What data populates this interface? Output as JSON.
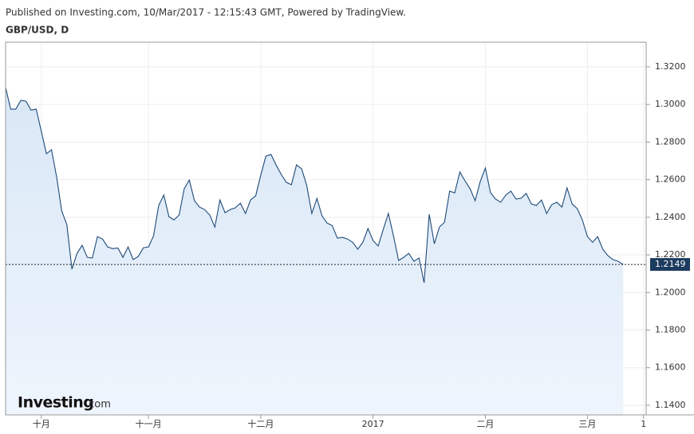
{
  "chart_data": {
    "type": "area-line",
    "subtitle": "Published on Investing.com, 10/Mar/2017 - 12:15:43 GMT, Powered by TradingView.",
    "title": "GBP/USD, D",
    "watermark": [
      "Investing",
      ".com"
    ],
    "series": [
      {
        "name": "GBP/USD",
        "color": "#1f4a78",
        "fill": "#dde9f6",
        "values": [
          1.309,
          1.2975,
          1.2975,
          1.3022,
          1.3017,
          1.297,
          1.2975,
          1.2857,
          1.2738,
          1.2759,
          1.2615,
          1.2433,
          1.2361,
          1.2124,
          1.2208,
          1.2251,
          1.2187,
          1.2183,
          1.2297,
          1.2284,
          1.2242,
          1.2233,
          1.2237,
          1.2187,
          1.2242,
          1.2175,
          1.2192,
          1.2238,
          1.2242,
          1.2302,
          1.2463,
          1.2518,
          1.2403,
          1.2386,
          1.2412,
          1.2552,
          1.2598,
          1.2488,
          1.2454,
          1.2441,
          1.2412,
          1.2348,
          1.2492,
          1.2424,
          1.2441,
          1.245,
          1.2475,
          1.242,
          1.2492,
          1.2514,
          1.2624,
          1.2725,
          1.2734,
          1.2678,
          1.2628,
          1.2586,
          1.2573,
          1.2679,
          1.2658,
          1.2569,
          1.242,
          1.25,
          1.2407,
          1.2369,
          1.2356,
          1.2289,
          1.2293,
          1.2284,
          1.2267,
          1.223,
          1.2267,
          1.234,
          1.2276,
          1.2247,
          1.2336,
          1.242,
          1.2301,
          1.217,
          1.2187,
          1.2208,
          1.2166,
          1.2183,
          1.2052,
          1.2416,
          1.2259,
          1.2348,
          1.2374,
          1.2539,
          1.253,
          1.2641,
          1.2594,
          1.2552,
          1.2488,
          1.259,
          1.2662,
          1.2531,
          1.2497,
          1.248,
          1.2518,
          1.2539,
          1.2497,
          1.2501,
          1.2527,
          1.2471,
          1.2463,
          1.2492,
          1.242,
          1.2467,
          1.248,
          1.2454,
          1.2556,
          1.2471,
          1.2446,
          1.2386,
          1.2297,
          1.2267,
          1.2297,
          1.223,
          1.2196,
          1.2175,
          1.2166,
          1.2149
        ]
      }
    ],
    "xlim": [
      0,
      125.5
    ],
    "xticks": [
      {
        "value": 7,
        "label": "十月"
      },
      {
        "value": 28,
        "label": "十一月"
      },
      {
        "value": 50,
        "label": "十二月"
      },
      {
        "value": 72,
        "label": "2017"
      },
      {
        "value": 94,
        "label": "二月"
      },
      {
        "value": 114,
        "label": "三月"
      },
      {
        "value": 125,
        "label": "1"
      }
    ],
    "ylim": [
      1.1349,
      1.3331
    ],
    "yticks": [
      {
        "value": 1.14,
        "label": "1.1400"
      },
      {
        "value": 1.16,
        "label": "1.1600"
      },
      {
        "value": 1.18,
        "label": "1.1800"
      },
      {
        "value": 1.2,
        "label": "1.2000"
      },
      {
        "value": 1.22,
        "label": "1.2200"
      },
      {
        "value": 1.24,
        "label": "1.2400"
      },
      {
        "value": 1.26,
        "label": "1.2600"
      },
      {
        "value": 1.28,
        "label": "1.2800"
      },
      {
        "value": 1.3,
        "label": "1.3000"
      },
      {
        "value": 1.32,
        "label": "1.3200"
      }
    ],
    "grid": true
  }
}
